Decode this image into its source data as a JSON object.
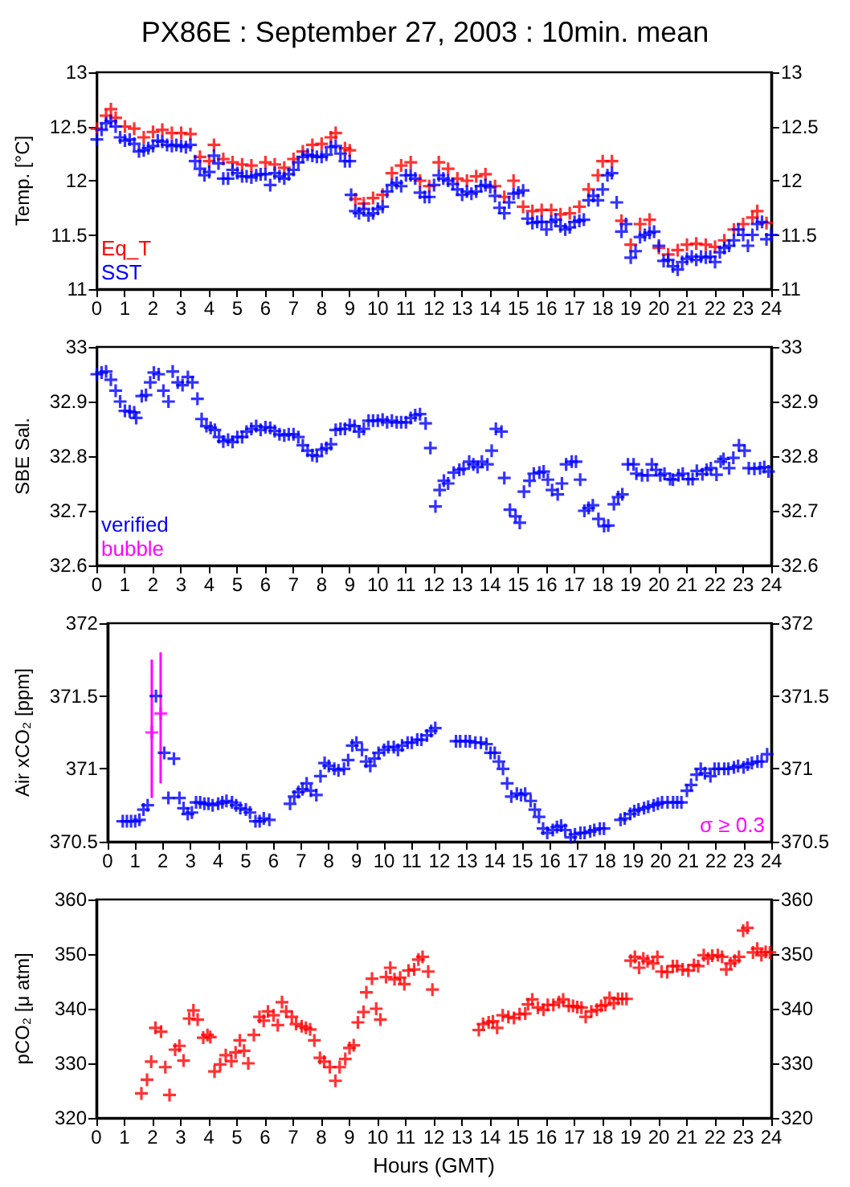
{
  "chart_data": [
    {
      "type": "scatter",
      "title": "PX86E : September 27, 2003 : 10min. mean",
      "ylabel": "Temp. [°C]",
      "xlim": [
        0,
        24
      ],
      "xticks": [
        0,
        1,
        2,
        3,
        4,
        5,
        6,
        7,
        8,
        9,
        10,
        11,
        12,
        13,
        14,
        15,
        16,
        17,
        18,
        19,
        20,
        21,
        22,
        23,
        24
      ],
      "ylim": [
        11,
        13
      ],
      "yticks": [
        11,
        11.5,
        12,
        12.5,
        13
      ],
      "y2lim": [
        11,
        13
      ],
      "y2ticks": [
        11,
        11.5,
        12,
        12.5,
        13
      ],
      "grid": false,
      "legend": "bottom left",
      "marker": "cross",
      "series": [
        {
          "name": "Eq_T",
          "color": "#ff0000",
          "x": [
            0,
            0.33,
            0.5,
            0.67,
            1,
            1.33,
            1.67,
            2,
            2.33,
            2.67,
            3,
            3.33,
            3.67,
            4,
            4.17,
            4.5,
            4.83,
            5.17,
            5.5,
            6,
            6.33,
            6.67,
            7,
            7.33,
            7.67,
            8,
            8.33,
            8.5,
            8.83,
            9,
            9.2,
            9.5,
            9.83,
            10.17,
            10.5,
            10.83,
            11.17,
            11.5,
            11.83,
            12.17,
            12.5,
            12.83,
            13.17,
            13.5,
            13.83,
            14.17,
            14.5,
            14.83,
            15.17,
            15.5,
            15.83,
            16.17,
            16.5,
            16.83,
            17.17,
            17.5,
            17.83,
            18,
            18.33,
            18.67,
            19,
            19.33,
            19.67,
            20,
            20.33,
            20.67,
            21,
            21.33,
            21.67,
            22,
            22.33,
            22.67,
            23,
            23.33,
            23.5,
            23.83
          ],
          "values": [
            12.48,
            12.6,
            12.66,
            12.58,
            12.5,
            12.48,
            12.4,
            12.45,
            12.47,
            12.44,
            12.44,
            12.43,
            12.22,
            12.18,
            12.33,
            12.2,
            12.17,
            12.15,
            12.14,
            12.17,
            12.15,
            12.12,
            12.2,
            12.27,
            12.33,
            12.34,
            12.4,
            12.44,
            12.3,
            12.28,
            11.83,
            11.79,
            11.84,
            11.87,
            12.07,
            12.14,
            12.17,
            12,
            11.95,
            12.17,
            12.11,
            12.02,
            12,
            12.04,
            12.06,
            11.95,
            11.85,
            12,
            11.76,
            11.72,
            11.73,
            11.73,
            11.69,
            11.7,
            11.76,
            11.92,
            12.05,
            12.18,
            12.18,
            11.63,
            11.41,
            11.6,
            11.64,
            11.38,
            11.32,
            11.36,
            11.41,
            11.42,
            11.41,
            11.39,
            11.45,
            11.55,
            11.6,
            11.66,
            11.72,
            11.61
          ]
        },
        {
          "name": "SST",
          "color": "#0000ff",
          "x": [
            0,
            0.17,
            0.33,
            0.5,
            0.67,
            0.83,
            1,
            1.17,
            1.33,
            1.5,
            1.67,
            1.83,
            2,
            2.17,
            2.33,
            2.5,
            2.67,
            2.83,
            3,
            3.17,
            3.33,
            3.5,
            3.67,
            3.83,
            4,
            4.17,
            4.33,
            4.5,
            4.67,
            4.83,
            5,
            5.17,
            5.33,
            5.5,
            5.67,
            5.83,
            6,
            6.17,
            6.33,
            6.5,
            6.67,
            6.83,
            7,
            7.17,
            7.33,
            7.5,
            7.67,
            7.83,
            8,
            8.17,
            8.33,
            8.5,
            8.67,
            8.83,
            9,
            9.05,
            9.2,
            9.33,
            9.5,
            9.67,
            9.83,
            10,
            10.17,
            10.33,
            10.5,
            10.67,
            10.83,
            11,
            11.17,
            11.33,
            11.5,
            11.67,
            11.83,
            12,
            12.17,
            12.33,
            12.5,
            12.67,
            12.83,
            13,
            13.17,
            13.33,
            13.5,
            13.67,
            13.83,
            14,
            14.17,
            14.33,
            14.5,
            14.67,
            14.83,
            15,
            15.17,
            15.33,
            15.5,
            15.67,
            15.83,
            16,
            16.17,
            16.33,
            16.5,
            16.67,
            16.83,
            17,
            17.17,
            17.33,
            17.5,
            17.67,
            17.83,
            18,
            18.17,
            18.33,
            18.5,
            18.67,
            18.83,
            19,
            19.17,
            19.33,
            19.5,
            19.67,
            19.83,
            20,
            20.17,
            20.33,
            20.5,
            20.67,
            20.83,
            21,
            21.17,
            21.33,
            21.5,
            21.67,
            21.83,
            22,
            22.17,
            22.33,
            22.5,
            22.67,
            22.83,
            23,
            23.17,
            23.33,
            23.5,
            23.67,
            23.83,
            24
          ],
          "values": [
            12.38,
            12.47,
            12.53,
            12.55,
            12.5,
            12.4,
            12.37,
            12.38,
            12.34,
            12.27,
            12.28,
            12.3,
            12.32,
            12.37,
            12.36,
            12.33,
            12.32,
            12.33,
            12.32,
            12.31,
            12.33,
            12.18,
            12.11,
            12.05,
            12.08,
            12.23,
            12.16,
            12.02,
            12.02,
            12.1,
            12.07,
            12.04,
            12.04,
            12.03,
            12.05,
            12.06,
            12.06,
            11.96,
            12.07,
            12.04,
            12.02,
            12.06,
            12.1,
            12.17,
            12.22,
            12.24,
            12.23,
            12.22,
            12.22,
            12.24,
            12.31,
            12.32,
            12.25,
            12.18,
            12.18,
            11.87,
            11.72,
            11.7,
            11.74,
            11.68,
            11.7,
            11.74,
            11.76,
            11.9,
            11.96,
            11.98,
            11.95,
            12.05,
            12.05,
            12.02,
            11.89,
            11.85,
            11.85,
            11.96,
            12.05,
            12.02,
            12,
            11.97,
            11.92,
            11.87,
            11.9,
            11.88,
            11.9,
            11.95,
            11.96,
            11.94,
            11.86,
            11.75,
            11.7,
            11.8,
            11.88,
            11.89,
            11.91,
            11.65,
            11.61,
            11.62,
            11.62,
            11.55,
            11.62,
            11.64,
            11.58,
            11.55,
            11.57,
            11.62,
            11.63,
            11.64,
            11.82,
            11.86,
            11.82,
            11.92,
            12.05,
            12.07,
            11.8,
            11.53,
            11.6,
            11.29,
            11.35,
            11.48,
            11.5,
            11.52,
            11.53,
            11.4,
            11.26,
            11.27,
            11.21,
            11.18,
            11.25,
            11.28,
            11.3,
            11.27,
            11.3,
            11.29,
            11.3,
            11.25,
            11.34,
            11.38,
            11.4,
            11.45,
            11.55,
            11.5,
            11.4,
            11.5,
            11.6,
            11.62,
            11.46,
            11.5
          ]
        }
      ]
    },
    {
      "type": "scatter",
      "ylabel": "SBE Sal.",
      "xlim": [
        0,
        24
      ],
      "xticks": [
        0,
        1,
        2,
        3,
        4,
        5,
        6,
        7,
        8,
        9,
        10,
        11,
        12,
        13,
        14,
        15,
        16,
        17,
        18,
        19,
        20,
        21,
        22,
        23,
        24
      ],
      "ylim": [
        32.6,
        33
      ],
      "yticks": [
        32.6,
        32.7,
        32.8,
        32.9,
        33
      ],
      "y2lim": [
        32.6,
        33
      ],
      "y2ticks": [
        32.6,
        32.7,
        32.8,
        32.9,
        33
      ],
      "grid": false,
      "legend": "bottom left",
      "marker": "cross",
      "series": [
        {
          "name": "verified",
          "color": "#0000ff",
          "x": [
            0,
            0.17,
            0.33,
            0.5,
            0.67,
            0.83,
            1,
            1.17,
            1.33,
            1.4,
            1.6,
            1.75,
            1.9,
            2.03,
            2.2,
            2.37,
            2.55,
            2.7,
            2.88,
            3.05,
            3.24,
            3.4,
            3.58,
            3.73,
            3.9,
            4.05,
            4.2,
            4.35,
            4.5,
            4.67,
            4.83,
            5,
            5.17,
            5.33,
            5.5,
            5.67,
            5.83,
            6,
            6.17,
            6.33,
            6.5,
            6.67,
            6.83,
            7,
            7.17,
            7.33,
            7.5,
            7.67,
            7.83,
            8,
            8.17,
            8.33,
            8.5,
            8.67,
            8.83,
            9,
            9.17,
            9.33,
            9.5,
            9.67,
            9.83,
            10,
            10.17,
            10.33,
            10.5,
            10.67,
            10.83,
            11,
            11.17,
            11.33,
            11.5,
            11.7,
            11.87,
            12.05,
            12.2,
            12.35,
            12.5,
            12.7,
            12.9,
            13.05,
            13.25,
            13.4,
            13.55,
            13.7,
            13.9,
            14.05,
            14.2,
            14.4,
            14.5,
            14.7,
            14.9,
            15.05,
            15.2,
            15.4,
            15.55,
            15.75,
            15.9,
            16.05,
            16.2,
            16.4,
            16.55,
            16.7,
            16.9,
            17.05,
            17.2,
            17.35,
            17.5,
            17.65,
            17.85,
            18.05,
            18.2,
            18.4,
            18.55,
            18.7,
            18.9,
            19.1,
            19.2,
            19.4,
            19.6,
            19.75,
            19.9,
            20.05,
            20.2,
            20.4,
            20.5,
            20.7,
            20.85,
            21.05,
            21.2,
            21.35,
            21.55,
            21.7,
            21.85,
            22.05,
            22.2,
            22.3,
            22.5,
            22.65,
            22.85,
            23.05,
            23.2,
            23.4,
            23.6,
            23.75,
            23.9
          ],
          "values": [
            32.95,
            32.953,
            32.955,
            32.94,
            32.92,
            32.9,
            32.883,
            32.882,
            32.88,
            32.87,
            32.91,
            32.912,
            32.935,
            32.953,
            32.95,
            32.92,
            32.9,
            32.955,
            32.935,
            32.93,
            32.945,
            32.935,
            32.905,
            32.868,
            32.855,
            32.852,
            32.848,
            32.835,
            32.827,
            32.83,
            32.826,
            32.835,
            32.835,
            32.845,
            32.85,
            32.855,
            32.848,
            32.853,
            32.852,
            32.846,
            32.84,
            32.838,
            32.84,
            32.84,
            32.835,
            32.82,
            32.81,
            32.802,
            32.8,
            32.812,
            32.815,
            32.822,
            32.848,
            32.85,
            32.85,
            32.857,
            32.855,
            32.845,
            32.85,
            32.865,
            32.865,
            32.865,
            32.867,
            32.862,
            32.865,
            32.862,
            32.862,
            32.862,
            32.87,
            32.875,
            32.877,
            32.86,
            32.815,
            32.708,
            32.738,
            32.755,
            32.75,
            32.77,
            32.775,
            32.777,
            32.79,
            32.785,
            32.78,
            32.79,
            32.785,
            32.81,
            32.85,
            32.845,
            32.76,
            32.702,
            32.69,
            32.678,
            32.735,
            32.755,
            32.768,
            32.77,
            32.772,
            32.757,
            32.738,
            32.73,
            32.75,
            32.785,
            32.79,
            32.79,
            32.757,
            32.7,
            32.705,
            32.71,
            32.685,
            32.672,
            32.673,
            32.712,
            32.725,
            32.73,
            32.785,
            32.785,
            32.768,
            32.765,
            32.765,
            32.785,
            32.775,
            32.765,
            32.768,
            32.758,
            32.757,
            32.765,
            32.768,
            32.758,
            32.758,
            32.773,
            32.767,
            32.775,
            32.778,
            32.766,
            32.79,
            32.795,
            32.778,
            32.797,
            32.82,
            32.81,
            32.778,
            32.777,
            32.778,
            32.78,
            32.772
          ]
        },
        {
          "name": "bubble",
          "color": "#ff00ff"
        }
      ]
    },
    {
      "type": "scatter",
      "ylabel": "Air xCO₂ [ppm]",
      "xlim": [
        0,
        24
      ],
      "xticks": [
        0,
        1,
        2,
        3,
        4,
        5,
        6,
        7,
        8,
        9,
        10,
        11,
        12,
        13,
        14,
        15,
        16,
        17,
        18,
        19,
        20,
        21,
        22,
        23,
        24
      ],
      "ylim": [
        370.5,
        372
      ],
      "yticks": [
        370.5,
        371,
        371.5,
        372
      ],
      "y2lim": [
        370.5,
        372
      ],
      "y2ticks": [
        370.5,
        371,
        371.5,
        372
      ],
      "grid": false,
      "legend": "bottom right",
      "marker": "cross",
      "series": [
        {
          "color": "#0000ff",
          "x": [
            0.55,
            0.7,
            0.85,
            1,
            1.15,
            1.3,
            1.45,
            1.75,
            2.05,
            2.2,
            2.4,
            2.6,
            2.75,
            2.9,
            3.05,
            3.2,
            3.35,
            3.5,
            3.65,
            3.8,
            4,
            4.15,
            4.3,
            4.5,
            4.65,
            4.8,
            5,
            5.15,
            5.35,
            5.5,
            5.65,
            5.85,
            6.6,
            6.75,
            6.9,
            7.05,
            7.2,
            7.35,
            7.55,
            7.7,
            7.85,
            8,
            8.2,
            8.35,
            8.55,
            8.7,
            8.85,
            9,
            9.2,
            9.35,
            9.5,
            9.65,
            9.8,
            10,
            10.15,
            10.35,
            10.5,
            10.65,
            10.85,
            11,
            11.2,
            11.35,
            11.55,
            11.7,
            11.85,
            12.6,
            12.75,
            12.95,
            13.1,
            13.3,
            13.5,
            13.7,
            13.85,
            14,
            14.15,
            14.3,
            14.45,
            14.6,
            14.8,
            14.95,
            15.1,
            15.3,
            15.45,
            15.6,
            15.75,
            15.9,
            16.1,
            16.25,
            16.4,
            16.55,
            16.75,
            16.9,
            17.1,
            17.25,
            17.45,
            17.6,
            17.8,
            17.95,
            18.55,
            18.7,
            18.9,
            19.05,
            19.2,
            19.4,
            19.55,
            19.75,
            19.9,
            20.05,
            20.25,
            20.45,
            20.6,
            20.75,
            20.95,
            21.1,
            21.3,
            21.45,
            21.6,
            21.8,
            21.95,
            22.1,
            22.3,
            22.45,
            22.65,
            22.8,
            23,
            23.15,
            23.3,
            23.5,
            23.65,
            23.85
          ],
          "values": [
            370.64,
            370.64,
            370.64,
            370.64,
            370.65,
            370.72,
            370.75,
            371.5,
            371.11,
            370.8,
            371.07,
            370.8,
            370.73,
            370.69,
            370.7,
            370.77,
            370.77,
            370.76,
            370.76,
            370.75,
            370.76,
            370.77,
            370.78,
            370.77,
            370.75,
            370.73,
            370.72,
            370.7,
            370.64,
            370.64,
            370.66,
            370.65,
            370.76,
            370.81,
            370.84,
            370.86,
            370.9,
            370.85,
            370.82,
            370.95,
            371.04,
            371.02,
            371,
            370.99,
            371,
            371.06,
            371.16,
            371.18,
            371.13,
            371.05,
            371.02,
            371.07,
            371.11,
            371.13,
            371.15,
            371.15,
            371.13,
            371.16,
            371.18,
            371.18,
            371.2,
            371.2,
            371.23,
            371.26,
            371.28,
            371.19,
            371.19,
            371.19,
            371.19,
            371.18,
            371.18,
            371.17,
            371.11,
            371.11,
            371.05,
            371,
            370.9,
            370.81,
            370.83,
            370.82,
            370.83,
            370.78,
            370.72,
            370.67,
            370.59,
            370.56,
            370.58,
            370.6,
            370.61,
            370.58,
            370.53,
            370.55,
            370.56,
            370.56,
            370.57,
            370.58,
            370.59,
            370.59,
            370.65,
            370.66,
            370.69,
            370.71,
            370.72,
            370.73,
            370.74,
            370.75,
            370.76,
            370.77,
            370.77,
            370.77,
            370.77,
            370.77,
            370.85,
            370.89,
            370.96,
            371,
            370.97,
            370.95,
            371,
            371,
            371,
            371,
            371.01,
            371.02,
            371.01,
            371.03,
            371.04,
            371.05,
            371.05,
            371.1
          ]
        },
        {
          "name": "σ ≥ 0.3",
          "color": "#ff00ff",
          "x": [
            1.6,
            1.92
          ],
          "values": [
            371.25,
            371.38
          ],
          "errors": [
            [
              370.8,
              371.75
            ],
            [
              370.9,
              371.8
            ]
          ]
        }
      ]
    },
    {
      "type": "scatter",
      "ylabel": "pCO₂ [μ atm]",
      "xlabel": "Hours (GMT)",
      "xlim": [
        0,
        24
      ],
      "xticks": [
        0,
        1,
        2,
        3,
        4,
        5,
        6,
        7,
        8,
        9,
        10,
        11,
        12,
        13,
        14,
        15,
        16,
        17,
        18,
        19,
        20,
        21,
        22,
        23,
        24
      ],
      "ylim": [
        320,
        360
      ],
      "yticks": [
        320,
        330,
        340,
        350,
        360
      ],
      "y2lim": [
        320,
        360
      ],
      "y2ticks": [
        320,
        330,
        340,
        350,
        360
      ],
      "grid": false,
      "marker": "cross",
      "series": [
        {
          "color": "#ff0000",
          "x": [
            1.6,
            1.8,
            1.95,
            2.1,
            2.3,
            2.45,
            2.6,
            2.8,
            2.95,
            3.1,
            3.3,
            3.45,
            3.6,
            3.8,
            3.95,
            4.05,
            4.2,
            4.4,
            4.6,
            4.8,
            4.95,
            5.1,
            5.25,
            5.4,
            5.6,
            5.8,
            5.95,
            6.1,
            6.3,
            6.45,
            6.6,
            6.75,
            6.95,
            7.1,
            7.3,
            7.45,
            7.6,
            7.75,
            7.95,
            8.1,
            8.3,
            8.5,
            8.65,
            8.85,
            9,
            9.15,
            9.3,
            9.5,
            9.6,
            9.8,
            9.95,
            10.1,
            10.3,
            10.45,
            10.6,
            10.8,
            10.95,
            11.1,
            11.3,
            11.45,
            11.6,
            11.8,
            11.95,
            13.6,
            13.75,
            13.95,
            14.1,
            14.25,
            14.45,
            14.65,
            14.85,
            15.05,
            15.25,
            15.35,
            15.5,
            15.7,
            15.9,
            16.05,
            16.25,
            16.45,
            16.6,
            16.8,
            16.95,
            17.1,
            17.25,
            17.4,
            17.6,
            17.8,
            17.95,
            18.1,
            18.25,
            18.4,
            18.55,
            18.7,
            18.85,
            19,
            19.15,
            19.3,
            19.45,
            19.6,
            19.8,
            19.95,
            20.1,
            20.3,
            20.5,
            20.65,
            20.85,
            21.05,
            21.25,
            21.4,
            21.6,
            21.75,
            21.9,
            22.1,
            22.25,
            22.4,
            22.55,
            22.7,
            22.85,
            23,
            23.15,
            23.35,
            23.5,
            23.65,
            23.8,
            23.95
          ],
          "values": [
            324.5,
            327,
            330.3,
            336.5,
            335.8,
            329.3,
            324.2,
            332.5,
            333.2,
            330.5,
            338.2,
            339.7,
            338,
            334.7,
            335.2,
            334.8,
            328.5,
            329.8,
            331.5,
            330.4,
            332,
            334.2,
            332.3,
            330,
            335.2,
            338.5,
            337.8,
            339.5,
            338.8,
            337,
            341.2,
            339.5,
            338.5,
            337.2,
            336.8,
            336.5,
            336.2,
            334.2,
            331,
            330.3,
            329.3,
            326.8,
            329.3,
            330.8,
            332.8,
            333.3,
            337.5,
            339.4,
            343,
            345.5,
            340,
            338,
            345.8,
            347.5,
            345.4,
            345.7,
            344.5,
            347,
            347.2,
            349,
            349.5,
            346.8,
            343.5,
            336.1,
            337.2,
            337.5,
            337.7,
            336.5,
            338.8,
            338.5,
            338.3,
            339,
            339.1,
            340.8,
            341.7,
            340.2,
            339.8,
            340.7,
            340.7,
            341.2,
            341.7,
            340.5,
            340.5,
            340.3,
            340.2,
            338.5,
            339.5,
            339.8,
            340.5,
            340.7,
            342,
            341,
            341.8,
            341.8,
            341.8,
            348.8,
            349.5,
            347.5,
            349.2,
            348.7,
            348.3,
            349.5,
            346.8,
            346.7,
            347.8,
            347.8,
            347.2,
            347,
            348,
            347.8,
            349.8,
            349.2,
            349.7,
            349.8,
            349.5,
            347.2,
            348.3,
            348.8,
            349.5,
            354.3,
            354.8,
            350.3,
            351,
            349.8,
            350.4,
            350.3
          ]
        }
      ]
    }
  ]
}
